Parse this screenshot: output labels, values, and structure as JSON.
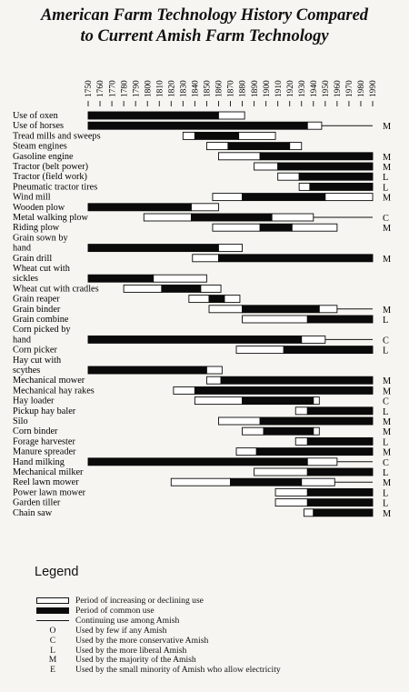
{
  "title_line1": "American Farm Technology History Compared",
  "title_line2": "to Current Amish Farm Technology",
  "chart_data": {
    "type": "bar",
    "title": "American Farm Technology History Compared to Current Amish Farm Technology",
    "xlim": [
      1750,
      1990
    ],
    "years": [
      1750,
      1760,
      1770,
      1780,
      1790,
      1800,
      1810,
      1820,
      1830,
      1840,
      1850,
      1860,
      1870,
      1880,
      1890,
      1900,
      1910,
      1920,
      1930,
      1940,
      1950,
      1960,
      1970,
      1980,
      1990
    ],
    "rows": [
      {
        "label": [
          "Use of oxen"
        ],
        "segments": [
          [
            1750,
            1860,
            "c"
          ],
          [
            1860,
            1882,
            "d"
          ]
        ],
        "code": ""
      },
      {
        "label": [
          "Use of horses"
        ],
        "segments": [
          [
            1750,
            1935,
            "c"
          ],
          [
            1935,
            1947,
            "d"
          ]
        ],
        "continuing": [
          1947,
          1990
        ],
        "code": "M"
      },
      {
        "label": [
          "Tread mills and sweeps"
        ],
        "segments": [
          [
            1830,
            1840,
            "i"
          ],
          [
            1840,
            1877,
            "c"
          ],
          [
            1877,
            1908,
            "d"
          ]
        ],
        "code": ""
      },
      {
        "label": [
          "Steam engines"
        ],
        "segments": [
          [
            1850,
            1868,
            "i"
          ],
          [
            1868,
            1920,
            "c"
          ],
          [
            1920,
            1930,
            "d"
          ]
        ],
        "code": ""
      },
      {
        "label": [
          "Gasoline engine"
        ],
        "segments": [
          [
            1860,
            1895,
            "i"
          ],
          [
            1895,
            1990,
            "c"
          ]
        ],
        "code": "M"
      },
      {
        "label": [
          "Tractor (belt power)"
        ],
        "segments": [
          [
            1890,
            1910,
            "i"
          ],
          [
            1910,
            1990,
            "c"
          ]
        ],
        "code": "M"
      },
      {
        "label": [
          "Tractor (field work)"
        ],
        "segments": [
          [
            1910,
            1928,
            "i"
          ],
          [
            1928,
            1990,
            "c"
          ]
        ],
        "code": "L"
      },
      {
        "label": [
          "Pneumatic tractor tires"
        ],
        "segments": [
          [
            1928,
            1937,
            "i"
          ],
          [
            1937,
            1990,
            "c"
          ]
        ],
        "code": "L"
      },
      {
        "label": [
          "Wind mill"
        ],
        "segments": [
          [
            1855,
            1880,
            "i"
          ],
          [
            1880,
            1950,
            "c"
          ],
          [
            1950,
            1990,
            "d"
          ]
        ],
        "code": "M"
      },
      {
        "label": [
          "Wooden plow"
        ],
        "segments": [
          [
            1750,
            1837,
            "c"
          ],
          [
            1837,
            1860,
            "d"
          ]
        ],
        "code": ""
      },
      {
        "label": [
          "Metal walking plow"
        ],
        "segments": [
          [
            1797,
            1837,
            "i"
          ],
          [
            1837,
            1905,
            "c"
          ],
          [
            1905,
            1940,
            "d"
          ]
        ],
        "continuing": [
          1940,
          1990
        ],
        "code": "C"
      },
      {
        "label": [
          "Riding plow"
        ],
        "segments": [
          [
            1855,
            1895,
            "i"
          ],
          [
            1895,
            1922,
            "c"
          ],
          [
            1922,
            1960,
            "d"
          ]
        ],
        "code": "M"
      },
      {
        "label": [
          "Grain sown by",
          "hand"
        ],
        "segments": [
          [
            1750,
            1860,
            "c"
          ],
          [
            1860,
            1880,
            "d"
          ]
        ],
        "code": ""
      },
      {
        "label": [
          "Grain drill"
        ],
        "segments": [
          [
            1838,
            1860,
            "i"
          ],
          [
            1860,
            1990,
            "c"
          ]
        ],
        "code": "M"
      },
      {
        "label": [
          "Wheat cut with",
          "sickles"
        ],
        "segments": [
          [
            1750,
            1805,
            "c"
          ],
          [
            1805,
            1850,
            "d"
          ]
        ],
        "code": ""
      },
      {
        "label": [
          "Wheat cut with cradles"
        ],
        "segments": [
          [
            1780,
            1812,
            "i"
          ],
          [
            1812,
            1845,
            "c"
          ],
          [
            1845,
            1862,
            "d"
          ]
        ],
        "code": ""
      },
      {
        "label": [
          "Grain reaper"
        ],
        "segments": [
          [
            1835,
            1852,
            "i"
          ],
          [
            1852,
            1865,
            "c"
          ],
          [
            1865,
            1878,
            "d"
          ]
        ],
        "code": ""
      },
      {
        "label": [
          "Grain binder"
        ],
        "segments": [
          [
            1852,
            1880,
            "i"
          ],
          [
            1880,
            1945,
            "c"
          ],
          [
            1945,
            1960,
            "d"
          ]
        ],
        "continuing": [
          1960,
          1990
        ],
        "code": "M"
      },
      {
        "label": [
          "Grain combine"
        ],
        "segments": [
          [
            1880,
            1935,
            "i"
          ],
          [
            1935,
            1990,
            "c"
          ]
        ],
        "code": "L"
      },
      {
        "label": [
          "Corn picked by",
          "hand"
        ],
        "segments": [
          [
            1750,
            1930,
            "c"
          ],
          [
            1930,
            1950,
            "d"
          ]
        ],
        "continuing": [
          1950,
          1990
        ],
        "code": "C"
      },
      {
        "label": [
          "Corn picker"
        ],
        "segments": [
          [
            1875,
            1915,
            "i"
          ],
          [
            1915,
            1990,
            "c"
          ]
        ],
        "code": "L"
      },
      {
        "label": [
          "Hay cut with",
          "scythes"
        ],
        "segments": [
          [
            1750,
            1850,
            "c"
          ],
          [
            1850,
            1863,
            "d"
          ]
        ],
        "code": ""
      },
      {
        "label": [
          "Mechanical mower"
        ],
        "segments": [
          [
            1850,
            1862,
            "i"
          ],
          [
            1862,
            1990,
            "c"
          ]
        ],
        "code": "M"
      },
      {
        "label": [
          "Mechanical hay rakes"
        ],
        "segments": [
          [
            1822,
            1840,
            "i"
          ],
          [
            1840,
            1990,
            "c"
          ]
        ],
        "code": "M"
      },
      {
        "label": [
          "Hay loader"
        ],
        "segments": [
          [
            1840,
            1880,
            "i"
          ],
          [
            1880,
            1940,
            "c"
          ],
          [
            1940,
            1945,
            "d"
          ]
        ],
        "code": "C"
      },
      {
        "label": [
          "Pickup hay baler"
        ],
        "segments": [
          [
            1925,
            1935,
            "i"
          ],
          [
            1935,
            1990,
            "c"
          ]
        ],
        "code": "L"
      },
      {
        "label": [
          "Silo"
        ],
        "segments": [
          [
            1860,
            1895,
            "i"
          ],
          [
            1895,
            1990,
            "c"
          ]
        ],
        "code": "M"
      },
      {
        "label": [
          "Corn binder"
        ],
        "segments": [
          [
            1880,
            1898,
            "i"
          ],
          [
            1898,
            1940,
            "c"
          ],
          [
            1940,
            1945,
            "d"
          ]
        ],
        "code": "M"
      },
      {
        "label": [
          "Forage harvester"
        ],
        "segments": [
          [
            1925,
            1935,
            "i"
          ],
          [
            1935,
            1990,
            "c"
          ]
        ],
        "code": "L"
      },
      {
        "label": [
          "Manure spreader"
        ],
        "segments": [
          [
            1875,
            1892,
            "i"
          ],
          [
            1892,
            1990,
            "c"
          ]
        ],
        "code": "M"
      },
      {
        "label": [
          "Hand milking"
        ],
        "segments": [
          [
            1750,
            1935,
            "c"
          ],
          [
            1935,
            1960,
            "d"
          ]
        ],
        "continuing": [
          1960,
          1990
        ],
        "code": "C"
      },
      {
        "label": [
          "Mechanical milker"
        ],
        "segments": [
          [
            1890,
            1935,
            "i"
          ],
          [
            1935,
            1990,
            "c"
          ]
        ],
        "code": "L"
      },
      {
        "label": [
          "Reel lawn mower"
        ],
        "segments": [
          [
            1820,
            1870,
            "i"
          ],
          [
            1870,
            1930,
            "c"
          ],
          [
            1930,
            1958,
            "d"
          ]
        ],
        "continuing": [
          1958,
          1990
        ],
        "code": "M"
      },
      {
        "label": [
          "Power lawn mower"
        ],
        "segments": [
          [
            1908,
            1935,
            "i"
          ],
          [
            1935,
            1990,
            "c"
          ]
        ],
        "code": "L"
      },
      {
        "label": [
          "Garden tiller"
        ],
        "segments": [
          [
            1908,
            1935,
            "i"
          ],
          [
            1935,
            1990,
            "c"
          ]
        ],
        "code": "L"
      },
      {
        "label": [
          "Chain saw"
        ],
        "segments": [
          [
            1932,
            1940,
            "i"
          ],
          [
            1940,
            1990,
            "c"
          ]
        ],
        "code": "M"
      }
    ]
  },
  "legend": {
    "title": "Legend",
    "items": [
      {
        "symbol": "increasing",
        "text": "Period of increasing or declining use"
      },
      {
        "symbol": "common",
        "text": "Period of common use"
      },
      {
        "symbol": "line",
        "text": "Continuing use among Amish"
      },
      {
        "symbol": "O",
        "text": "Used by few if any Amish"
      },
      {
        "symbol": "C",
        "text": "Used by the more conservative Amish"
      },
      {
        "symbol": "L",
        "text": "Used by the more liberal Amish"
      },
      {
        "symbol": "M",
        "text": "Used by the majority of the Amish"
      },
      {
        "symbol": "E",
        "text": "Used by the small minority of Amish who allow electricity"
      }
    ]
  }
}
